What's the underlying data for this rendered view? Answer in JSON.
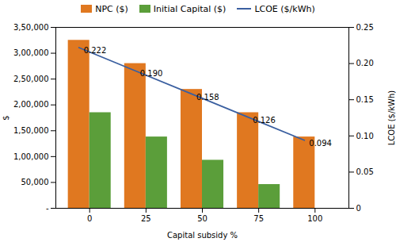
{
  "chart_data": {
    "type": "bar",
    "categories": [
      0,
      25,
      50,
      75,
      100
    ],
    "xlabel": "Capital subsidy %",
    "ylabel": "$",
    "y2label": "LCOE ($/kWh)",
    "series": [
      {
        "name": "NPC ($)",
        "type": "bar",
        "color": "#E07820",
        "values": [
          325000,
          280000,
          230000,
          185000,
          138000
        ]
      },
      {
        "name": "Initial Capital ($)",
        "type": "bar",
        "color": "#5B9E3A",
        "values": [
          185000,
          138000,
          93000,
          46000,
          0
        ]
      },
      {
        "name": "LCOE ($/kWh)",
        "type": "line",
        "axis": "y2",
        "color": "#3A5FA0",
        "values": [
          0.222,
          0.19,
          0.158,
          0.126,
          0.094
        ],
        "value_labels": [
          "0.222",
          "0.190",
          "0.158",
          "0.126",
          "0.094"
        ],
        "data_labels": true
      }
    ],
    "ylim": [
      0,
      350000
    ],
    "yticks": [
      {
        "value": 0,
        "label": "-"
      },
      {
        "value": 50000,
        "label": "50,000"
      },
      {
        "value": 100000,
        "label": "1,00,000"
      },
      {
        "value": 150000,
        "label": "1,50,000"
      },
      {
        "value": 200000,
        "label": "2,00,000"
      },
      {
        "value": 250000,
        "label": "2,50,000"
      },
      {
        "value": 300000,
        "label": "3,00,000"
      },
      {
        "value": 350000,
        "label": "3,50,000"
      }
    ],
    "y2lim": [
      0,
      0.25
    ],
    "y2ticks": [
      0,
      0.05,
      {
        "value": 0.1,
        "label": "0.10"
      },
      0.15,
      {
        "value": 0.2,
        "label": "0.20"
      },
      0.25
    ],
    "grid": false,
    "legend": "top"
  }
}
